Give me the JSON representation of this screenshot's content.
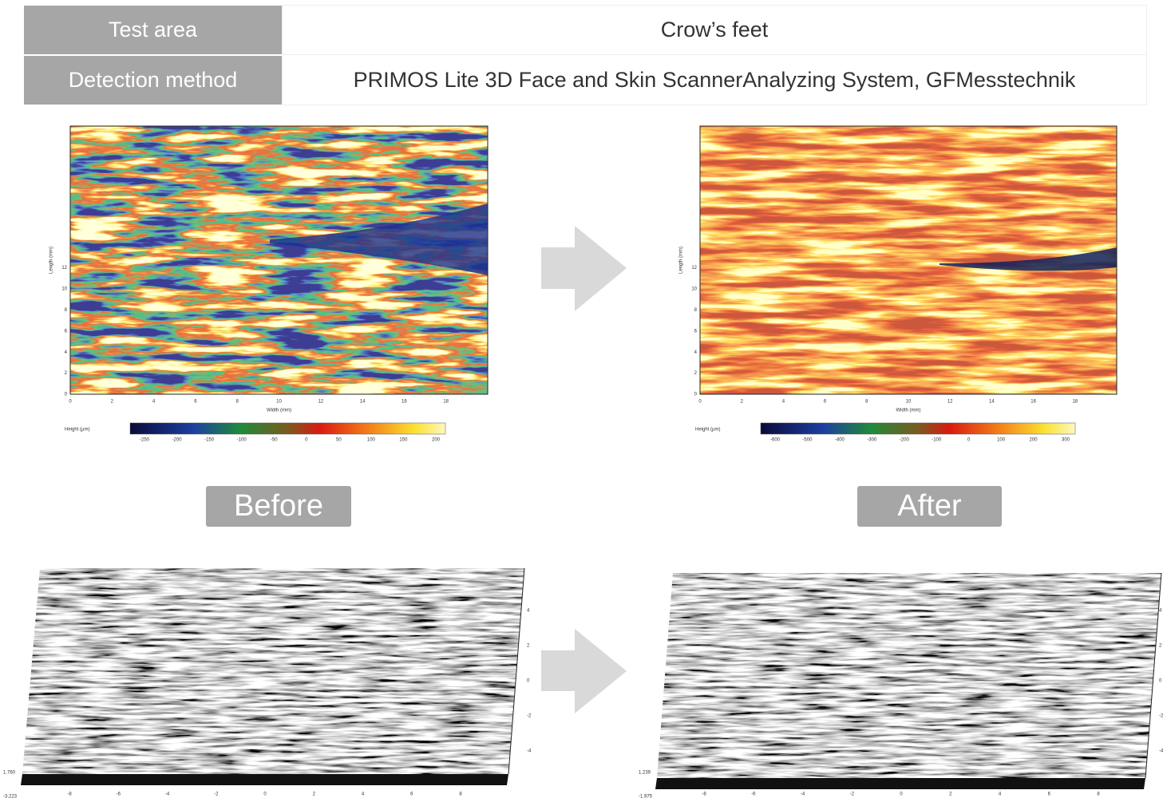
{
  "table": {
    "rows": [
      [
        "Test area",
        "Crow’s feet"
      ],
      [
        "Detection method",
        "PRIMOS Lite 3D Face and Skin ScannerAnalyzing System, GFMesstechnik"
      ]
    ]
  },
  "panels": [
    {
      "label": "Before",
      "heatmap": {
        "x_label": "Width (mm)",
        "y_label": "Length (mm)",
        "x_ticks": [
          0,
          2,
          4,
          6,
          8,
          10,
          12,
          14,
          16,
          18
        ],
        "y_ticks": [
          0,
          2,
          4,
          6,
          8,
          10,
          12
        ],
        "colorbar_label": "Height (µm)",
        "colorbar_ticks": [
          -250,
          -200,
          -150,
          -100,
          -50,
          0,
          50,
          100,
          150,
          200
        ]
      },
      "surface": {
        "x_ticks": [
          -8,
          -6,
          -4,
          -2,
          0,
          2,
          4,
          6,
          8
        ],
        "y_ticks": [
          4,
          2,
          0,
          -2,
          -4
        ],
        "z_top": "1.760",
        "z_bottom": "-3.223"
      }
    },
    {
      "label": "After",
      "heatmap": {
        "x_label": "Width (mm)",
        "y_label": "Length (mm)",
        "x_ticks": [
          0,
          2,
          4,
          6,
          8,
          10,
          12,
          14,
          16,
          18
        ],
        "y_ticks": [
          0,
          2,
          4,
          6,
          8,
          10,
          12
        ],
        "colorbar_label": "Height (µm)",
        "colorbar_ticks": [
          -600,
          -500,
          -400,
          -300,
          -200,
          -100,
          0,
          100,
          200,
          300
        ]
      },
      "surface": {
        "x_ticks": [
          -8,
          -6,
          -4,
          -2,
          0,
          2,
          4,
          6,
          8
        ],
        "y_ticks": [
          4,
          2,
          0,
          -2,
          -4
        ],
        "z_top": "1.239",
        "z_bottom": "-1.975"
      }
    }
  ]
}
